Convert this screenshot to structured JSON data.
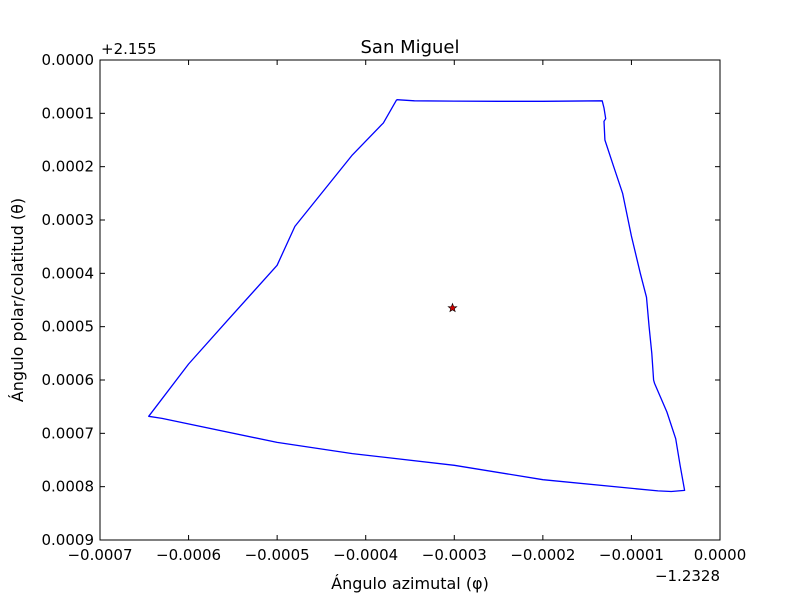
{
  "chart_data": {
    "type": "line",
    "title": "San Miguel",
    "xlabel": "Ángulo azimutal (φ)",
    "ylabel": "Ángulo polar/colatitud (θ)",
    "x_offset_label": "−1.2328",
    "y_offset_label": "+2.155",
    "xlim": [
      -0.0007,
      0.0
    ],
    "ylim": [
      0.0009,
      0.0
    ],
    "y_inverted": true,
    "x_ticks": [
      -0.0007,
      -0.0006,
      -0.0005,
      -0.0004,
      -0.0003,
      -0.0002,
      -0.0001,
      0.0
    ],
    "x_tick_labels": [
      "−0.0007",
      "−0.0006",
      "−0.0005",
      "−0.0004",
      "−0.0003",
      "−0.0002",
      "−0.0001",
      "0.0000"
    ],
    "y_ticks": [
      0.0,
      0.0001,
      0.0002,
      0.0003,
      0.0004,
      0.0005,
      0.0006,
      0.0007,
      0.0008,
      0.0009
    ],
    "y_tick_labels": [
      "0.0000",
      "0.0001",
      "0.0002",
      "0.0003",
      "0.0004",
      "0.0005",
      "0.0006",
      "0.0007",
      "0.0008",
      "0.0009"
    ],
    "grid": false,
    "series": [
      {
        "type": "line",
        "color": "#0000ff",
        "points": [
          [
            -0.000365,
            7.45e-05
          ],
          [
            -0.000345,
            7.65e-05
          ],
          [
            -0.0003,
            7.7e-05
          ],
          [
            -0.00025,
            7.75e-05
          ],
          [
            -0.0002,
            7.75e-05
          ],
          [
            -0.000133,
            7.65e-05
          ],
          [
            -0.000131,
            9e-05
          ],
          [
            -0.000129,
            0.00011
          ],
          [
            -0.000131,
            0.000115
          ],
          [
            -0.00013,
            0.00015
          ],
          [
            -0.00012,
            0.0002
          ],
          [
            -0.00011,
            0.00025
          ],
          [
            -0.0001,
            0.00033
          ],
          [
            -9e-05,
            0.0004
          ],
          [
            -8.3e-05,
            0.000445
          ],
          [
            -8e-05,
            0.0005
          ],
          [
            -7.7e-05,
            0.00055
          ],
          [
            -7.5e-05,
            0.0006
          ],
          [
            -7.4e-05,
            0.000606
          ],
          [
            -6e-05,
            0.00066
          ],
          [
            -5e-05,
            0.00071
          ],
          [
            -4.5e-05,
            0.00076
          ],
          [
            -4e-05,
            0.000807
          ],
          [
            -5.5e-05,
            0.000809
          ],
          [
            -7e-05,
            0.000808
          ],
          [
            -0.0002,
            0.000787
          ],
          [
            -0.0003,
            0.00076
          ],
          [
            -0.000415,
            0.000738
          ],
          [
            -0.0005,
            0.000717
          ],
          [
            -0.00063,
            0.000672
          ],
          [
            -0.000645,
            0.000668
          ],
          [
            -0.0006,
            0.00057
          ],
          [
            -0.000557,
            0.00049
          ],
          [
            -0.0005,
            0.000385
          ],
          [
            -0.00048,
            0.000312
          ],
          [
            -0.000415,
            0.000178
          ],
          [
            -0.00038,
            0.000118
          ],
          [
            -0.000365,
            7.45e-05
          ]
        ]
      },
      {
        "type": "scatter",
        "marker": "star",
        "color": "#cc0000",
        "points": [
          [
            -0.000302,
            0.000465
          ]
        ]
      }
    ]
  }
}
